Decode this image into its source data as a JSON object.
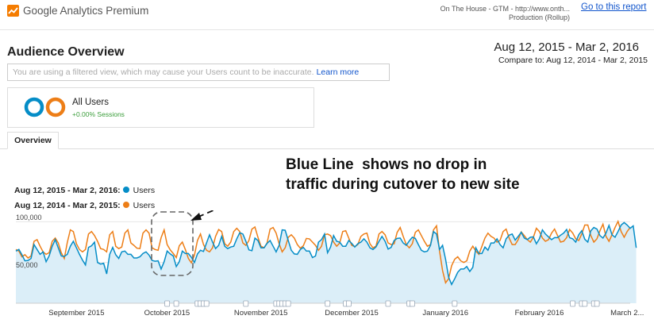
{
  "header": {
    "product_name": "Google Analytics Premium",
    "logo_icon": "analytics-logo-icon",
    "account_line1": "On The House - GTM - http://www.onth...",
    "account_line2": "Production (Rollup)",
    "report_link": "Go to this report"
  },
  "page": {
    "title": "Audience Overview",
    "date_range": "Aug 12, 2015 - Mar 2, 2016",
    "compare_range": "Compare to: Aug 12, 2014 - Mar 2, 2015"
  },
  "notice": {
    "text": "You are using a filtered view, which may cause your Users count to be inaccurate.",
    "link": "Learn more"
  },
  "segment": {
    "name": "All Users",
    "detail": "+0.00% Sessions",
    "colors": [
      "#058dc7",
      "#ed7e17"
    ]
  },
  "tabs": {
    "overview": "Overview"
  },
  "annotation": {
    "line1": "Blue Line  shows no drop in",
    "line2": "traffic during cutover to new site"
  },
  "legend": [
    {
      "range": "Aug 12, 2015 - Mar 2, 2016:",
      "label": "Users",
      "color": "#058dc7"
    },
    {
      "range": "Aug 12, 2014 - Mar 2, 2015:",
      "label": "Users",
      "color": "#ed7e17"
    }
  ],
  "chart_data": {
    "type": "line",
    "ylabel": "",
    "ytick_labels": [
      "100,000",
      "50,000"
    ],
    "yticks": [
      100000,
      50000
    ],
    "ylim": [
      0,
      114000
    ],
    "xtick_labels": [
      "September 2015",
      "October 2015",
      "November 2015",
      "December 2015",
      "January 2016",
      "February 2016",
      "March 2..."
    ],
    "xtick_positions": [
      20,
      50,
      81,
      111,
      142,
      173,
      202
    ],
    "x_range": [
      0,
      203
    ],
    "grid": true,
    "annotation_markers": [
      50,
      53,
      60,
      61,
      62,
      63,
      76,
      86,
      87,
      88,
      89,
      90,
      103,
      109,
      110,
      123,
      130,
      131,
      145,
      184,
      187,
      188,
      191,
      192
    ],
    "series": [
      {
        "name": "Users",
        "color": "#058dc7",
        "values": [
          64000,
          66000,
          59500,
          52000,
          52500,
          55000,
          72000,
          66000,
          60000,
          63000,
          51000,
          58000,
          70000,
          78000,
          68000,
          58000,
          57500,
          60000,
          70000,
          76000,
          68000,
          60000,
          53000,
          47000,
          68500,
          70500,
          75000,
          50000,
          48000,
          49000,
          36000,
          60000,
          68500,
          59500,
          55000,
          63000,
          64000,
          60000,
          60000,
          55500,
          55500,
          57000,
          61000,
          63000,
          59000,
          52500,
          51500,
          52000,
          42000,
          51000,
          64000,
          60500,
          58000,
          45000,
          51000,
          64000,
          61000,
          61000,
          56500,
          50000,
          60500,
          65000,
          63500,
          74000,
          84000,
          75000,
          67000,
          71000,
          82000,
          70000,
          67000,
          69000,
          70000,
          79000,
          86500,
          85000,
          76000,
          65500,
          64500,
          80000,
          77000,
          68000,
          68000,
          73500,
          77000,
          70000,
          63000,
          71000,
          90000,
          89500,
          77000,
          65000,
          60500,
          60000,
          66000,
          68500,
          64000,
          64000,
          56000,
          58000,
          75000,
          78000,
          85000,
          62000,
          69000,
          83000,
          76000,
          75000,
          70000,
          70000,
          77000,
          73500,
          69000,
          73000,
          75000,
          79000,
          75000,
          68000,
          66000,
          69000,
          76000,
          82000,
          76000,
          66500,
          68500,
          77000,
          79500,
          80000,
          74000,
          71000,
          76500,
          81000,
          79500,
          72000,
          65000,
          63000,
          64000,
          71000,
          88000,
          85000,
          66000,
          71000,
          54000,
          32000,
          23000,
          30000,
          38000,
          42000,
          42000,
          45000,
          39000,
          44000,
          68000,
          61000,
          61000,
          69000,
          65000,
          74000,
          74000,
          79000,
          72000,
          68000,
          79000,
          83500,
          85000,
          77500,
          82000,
          87000,
          80000,
          78000,
          81000,
          81500,
          73000,
          79000,
          90000,
          85000,
          81500,
          78000,
          80500,
          80500,
          83500,
          86000,
          90500,
          80500,
          79000,
          75000,
          84000,
          89000,
          78500,
          75000,
          89000,
          93000,
          91000,
          83000,
          80000,
          86000,
          95500,
          84000,
          81000,
          88000,
          96000,
          99000,
          96000,
          92000,
          95000,
          68000
        ]
      },
      {
        "name": "Users",
        "color": "#ed7e17",
        "values": [
          66000,
          64000,
          57000,
          59500,
          55500,
          58000,
          76000,
          78000,
          70000,
          63000,
          60000,
          62000,
          76000,
          80000,
          74000,
          62000,
          55000,
          74500,
          90000,
          88000,
          73000,
          66000,
          63000,
          66000,
          85000,
          88000,
          83000,
          76000,
          67000,
          66000,
          63000,
          84000,
          88000,
          70000,
          67000,
          69000,
          86000,
          90000,
          74000,
          71000,
          67500,
          67000,
          86000,
          90000,
          86000,
          68000,
          66000,
          65000,
          80500,
          90000,
          72000,
          65500,
          61000,
          56000,
          70500,
          75000,
          66000,
          55000,
          49500,
          59000,
          77000,
          85000,
          72000,
          65000,
          63000,
          68000,
          82000,
          90500,
          88000,
          73000,
          70000,
          75000,
          88000,
          92000,
          88000,
          74000,
          71000,
          77000,
          91000,
          93500,
          81000,
          70000,
          68000,
          74000,
          91000,
          93000,
          86000,
          73000,
          63000,
          68000,
          81000,
          84000,
          80000,
          72000,
          67500,
          70500,
          79500,
          79000,
          75000,
          71000,
          65000,
          70000,
          84000,
          85000,
          83000,
          75000,
          70000,
          74000,
          88000,
          89000,
          80000,
          71000,
          69500,
          72000,
          82000,
          85000,
          86000,
          73000,
          68000,
          70000,
          85000,
          88000,
          84000,
          74000,
          72000,
          73000,
          87000,
          93000,
          82000,
          72000,
          68000,
          73000,
          87000,
          90000,
          83000,
          76000,
          70000,
          72000,
          90000,
          95000,
          64000,
          40000,
          25000,
          30000,
          46000,
          54000,
          57000,
          52000,
          50000,
          52000,
          64000,
          70000,
          64000,
          60000,
          70000,
          80000,
          86000,
          82000,
          80000,
          75000,
          77000,
          88000,
          91000,
          80000,
          72000,
          72000,
          78000,
          87500,
          83000,
          78000,
          75000,
          81000,
          92000,
          88000,
          80000,
          76000,
          78000,
          86000,
          91000,
          83000,
          75000,
          76000,
          80500,
          90500,
          86000,
          79000,
          77000,
          85000,
          96000,
          96000,
          83000,
          75000,
          79000,
          89000,
          97000,
          82000,
          76000,
          84000,
          93000,
          100500,
          88000,
          81000,
          88000,
          93000
        ]
      }
    ]
  }
}
